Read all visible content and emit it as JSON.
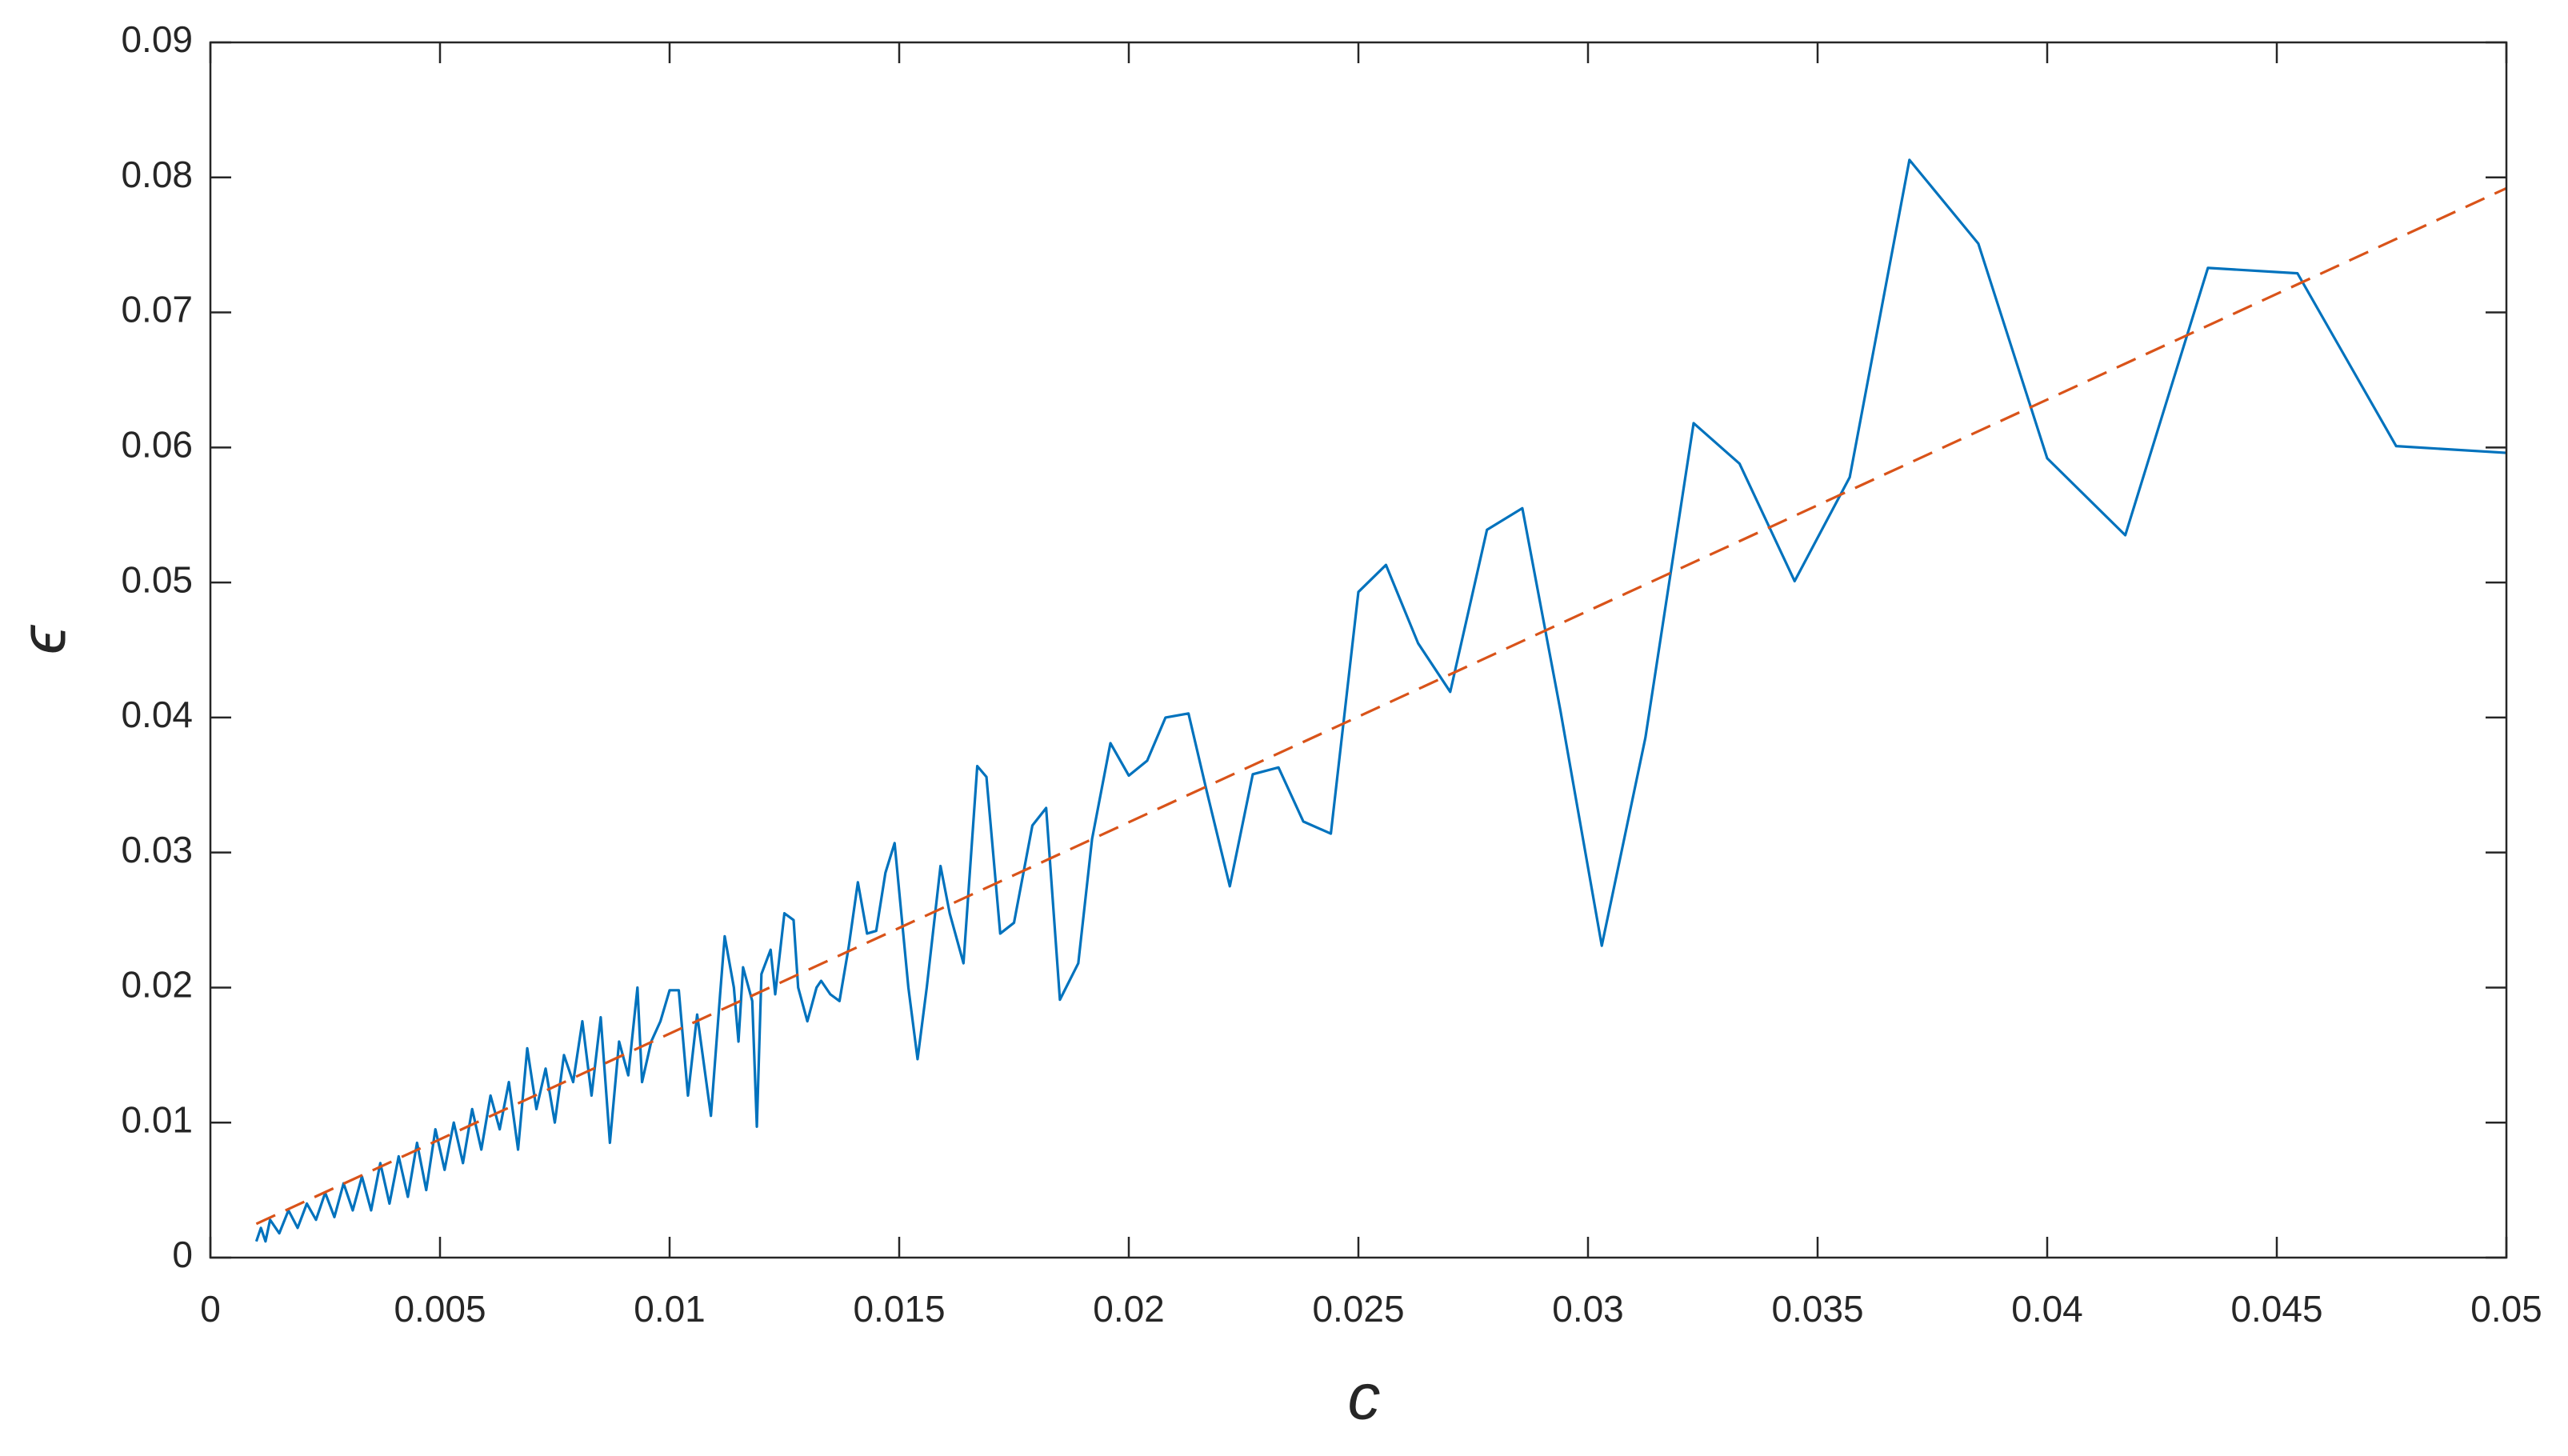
{
  "chart_data": {
    "type": "line",
    "xlabel": "c",
    "ylabel": "ϵ",
    "xlim": [
      0,
      0.05
    ],
    "ylim": [
      0,
      0.09
    ],
    "xticks": [
      0,
      0.005,
      0.01,
      0.015,
      0.02,
      0.025,
      0.03,
      0.035,
      0.04,
      0.045,
      0.05
    ],
    "yticks": [
      0,
      0.01,
      0.02,
      0.03,
      0.04,
      0.05,
      0.06,
      0.07,
      0.08,
      0.09
    ],
    "grid": false,
    "series": [
      {
        "color": "#0072BD",
        "dash": false,
        "x": [
          0.001,
          0.0011,
          0.0012,
          0.0013,
          0.0015,
          0.0017,
          0.0019,
          0.0021,
          0.0023,
          0.0025,
          0.0027,
          0.0029,
          0.0031,
          0.0033,
          0.0035,
          0.0037,
          0.0039,
          0.0041,
          0.0043,
          0.0045,
          0.0047,
          0.0049,
          0.0051,
          0.0053,
          0.0055,
          0.0057,
          0.0059,
          0.0061,
          0.0063,
          0.0065,
          0.0067,
          0.0069,
          0.0071,
          0.0073,
          0.0075,
          0.0077,
          0.0079,
          0.0081,
          0.0083,
          0.0085,
          0.0087,
          0.0089,
          0.0091,
          0.0093,
          0.0094,
          0.0096,
          0.0098,
          0.01,
          0.0102,
          0.0104,
          0.0106,
          0.0109,
          0.0111,
          0.0112,
          0.0114,
          0.0115,
          0.0116,
          0.0118,
          0.0119,
          0.012,
          0.0122,
          0.0123,
          0.0125,
          0.0127,
          0.0128,
          0.013,
          0.0132,
          0.0133,
          0.0135,
          0.0137,
          0.0139,
          0.0141,
          0.0143,
          0.0145,
          0.0147,
          0.0149,
          0.0152,
          0.0154,
          0.0156,
          0.0159,
          0.0161,
          0.0164,
          0.0167,
          0.0169,
          0.0172,
          0.0175,
          0.0179,
          0.0182,
          0.0185,
          0.0189,
          0.0192,
          0.0196,
          0.02,
          0.0204,
          0.0208,
          0.0213,
          0.0217,
          0.0222,
          0.0227,
          0.02326,
          0.0238,
          0.0244,
          0.025,
          0.0256,
          0.0263,
          0.027,
          0.0278,
          0.02857,
          0.0294,
          0.0303,
          0.03125,
          0.0323,
          0.0333,
          0.0345,
          0.0357,
          0.037,
          0.0385,
          0.04,
          0.0417,
          0.0435,
          0.04545,
          0.0476,
          0.05
        ],
        "values": [
          0.0012,
          0.0022,
          0.0012,
          0.0028,
          0.0018,
          0.0035,
          0.0022,
          0.004,
          0.0028,
          0.0048,
          0.003,
          0.0055,
          0.0035,
          0.006,
          0.0035,
          0.007,
          0.004,
          0.0075,
          0.0045,
          0.0085,
          0.005,
          0.0095,
          0.0065,
          0.01,
          0.007,
          0.011,
          0.008,
          0.012,
          0.0095,
          0.013,
          0.008,
          0.0155,
          0.011,
          0.014,
          0.01,
          0.015,
          0.013,
          0.0175,
          0.012,
          0.0178,
          0.0085,
          0.016,
          0.0135,
          0.02,
          0.013,
          0.016,
          0.0175,
          0.0198,
          0.0198,
          0.012,
          0.018,
          0.0105,
          0.0195,
          0.0238,
          0.02,
          0.016,
          0.0215,
          0.019,
          0.0097,
          0.021,
          0.0228,
          0.0195,
          0.0255,
          0.025,
          0.02,
          0.0175,
          0.02,
          0.0205,
          0.0195,
          0.019,
          0.023,
          0.0278,
          0.024,
          0.0242,
          0.0285,
          0.0307,
          0.02,
          0.0147,
          0.02,
          0.029,
          0.0255,
          0.0218,
          0.0364,
          0.0356,
          0.024,
          0.0248,
          0.032,
          0.0333,
          0.0191,
          0.0218,
          0.031,
          0.0381,
          0.0357,
          0.0368,
          0.04,
          0.0403,
          0.0345,
          0.0275,
          0.0358,
          0.0363,
          0.0323,
          0.0314,
          0.0493,
          0.0513,
          0.0455,
          0.0419,
          0.0539,
          0.0555,
          0.0405,
          0.0231,
          0.0385,
          0.0618,
          0.0588,
          0.0501,
          0.0578,
          0.0813,
          0.0751,
          0.0592,
          0.0535,
          0.0733,
          0.0729,
          0.0601,
          0.0596
        ]
      },
      {
        "color": "#D95319",
        "dash": true,
        "x": [
          0.001,
          0.05
        ],
        "values": [
          0.0025,
          0.0792
        ]
      }
    ]
  }
}
